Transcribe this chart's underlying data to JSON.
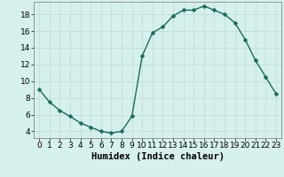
{
  "x": [
    0,
    1,
    2,
    3,
    4,
    5,
    6,
    7,
    8,
    9,
    10,
    11,
    12,
    13,
    14,
    15,
    16,
    17,
    18,
    19,
    20,
    21,
    22,
    23
  ],
  "y": [
    9.0,
    7.5,
    6.5,
    5.8,
    5.0,
    4.5,
    4.0,
    3.8,
    4.0,
    5.8,
    13.0,
    15.8,
    16.5,
    17.8,
    18.5,
    18.5,
    19.0,
    18.5,
    18.0,
    17.0,
    15.0,
    12.5,
    10.5,
    8.5
  ],
  "line_color": "#1a6b5a",
  "marker_color": "#1a6b5a",
  "bg_color": "#d6f0ee",
  "grid_color": "#c0ddd9",
  "xlabel": "Humidex (Indice chaleur)",
  "xlim": [
    -0.5,
    23.5
  ],
  "ylim": [
    3.2,
    19.5
  ],
  "yticks": [
    4,
    6,
    8,
    10,
    12,
    14,
    16,
    18
  ],
  "xticks": [
    0,
    1,
    2,
    3,
    4,
    5,
    6,
    7,
    8,
    9,
    10,
    11,
    12,
    13,
    14,
    15,
    16,
    17,
    18,
    19,
    20,
    21,
    22,
    23
  ],
  "xlabel_fontsize": 7.5,
  "tick_fontsize": 6.5,
  "marker_size": 2.5,
  "line_width": 1.0
}
